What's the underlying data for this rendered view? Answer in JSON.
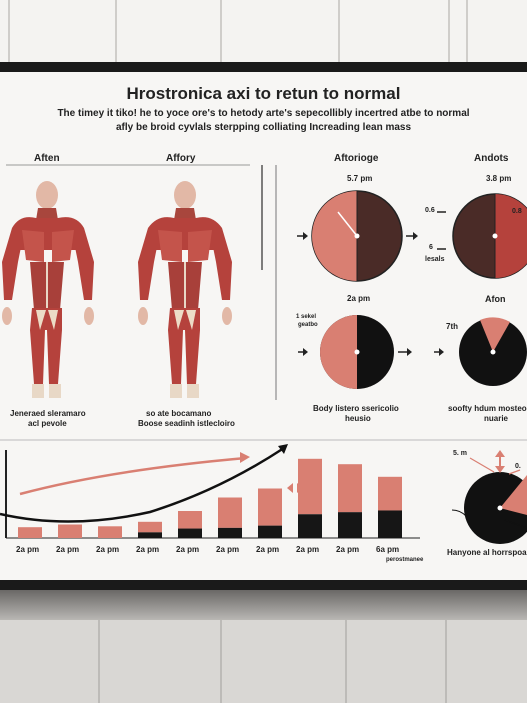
{
  "title": "Hrostronica axi to retun to normal",
  "subtitle_line1": "The timey it tiko! he to yoce ore's to hetody arte's sepecollibly incertred atbe to normal",
  "subtitle_line2": "afly be broid cyvlals sterpping colliating Increading lean mass",
  "figures": {
    "left_heading": "Aften",
    "right_heading": "Affory",
    "left_caption_line1": "Jeneraed sleramaro",
    "left_caption_line2": "acl pevole",
    "right_caption_line1": "so ate bocamano",
    "right_caption_line2": "Boose seadinh istlecloiro"
  },
  "top_charts": {
    "left_heading": "Aftorioge",
    "right_heading": "Andots",
    "left_time": "5.7 pm",
    "right_time": "3.8 pm",
    "side_label_top": "0.6",
    "side_label_mid": "6",
    "side_label_bot": "lesals",
    "right_side_label": "0.8"
  },
  "mid_charts": {
    "left_time": "2a pm",
    "right_heading": "Afon",
    "left_note_line1": "1 sekel",
    "left_note_line2": "geatbo",
    "right_note": "7th",
    "caption_left_line1": "Body listero ssericolio",
    "caption_left_line2": "heusio",
    "caption_right_line1": "soofty hdum mosteor",
    "caption_right_line2": "nuarie"
  },
  "bar_chart": {
    "ticks": [
      "2a pm",
      "2a pm",
      "2a pm",
      "2a pm",
      "2a pm",
      "2a pm",
      "2a pm",
      "2a pm",
      "2a pm",
      "6a pm"
    ],
    "extra_label": "perostmanee",
    "values": [
      0.12,
      0.15,
      0.13,
      0.18,
      0.3,
      0.45,
      0.55,
      0.88,
      0.82,
      0.68
    ],
    "dark_fraction": [
      0,
      0,
      0,
      0.35,
      0.35,
      0.25,
      0.25,
      0.3,
      0.35,
      0.45
    ]
  },
  "right_pie": {
    "label_top": "5. m",
    "label_right": "0.",
    "caption": "Hanyone al horrspoal"
  },
  "colors": {
    "muscle": "#b5423c",
    "salmon": "#d97f72",
    "dark_brown": "#4a2b27",
    "black": "#161616"
  }
}
